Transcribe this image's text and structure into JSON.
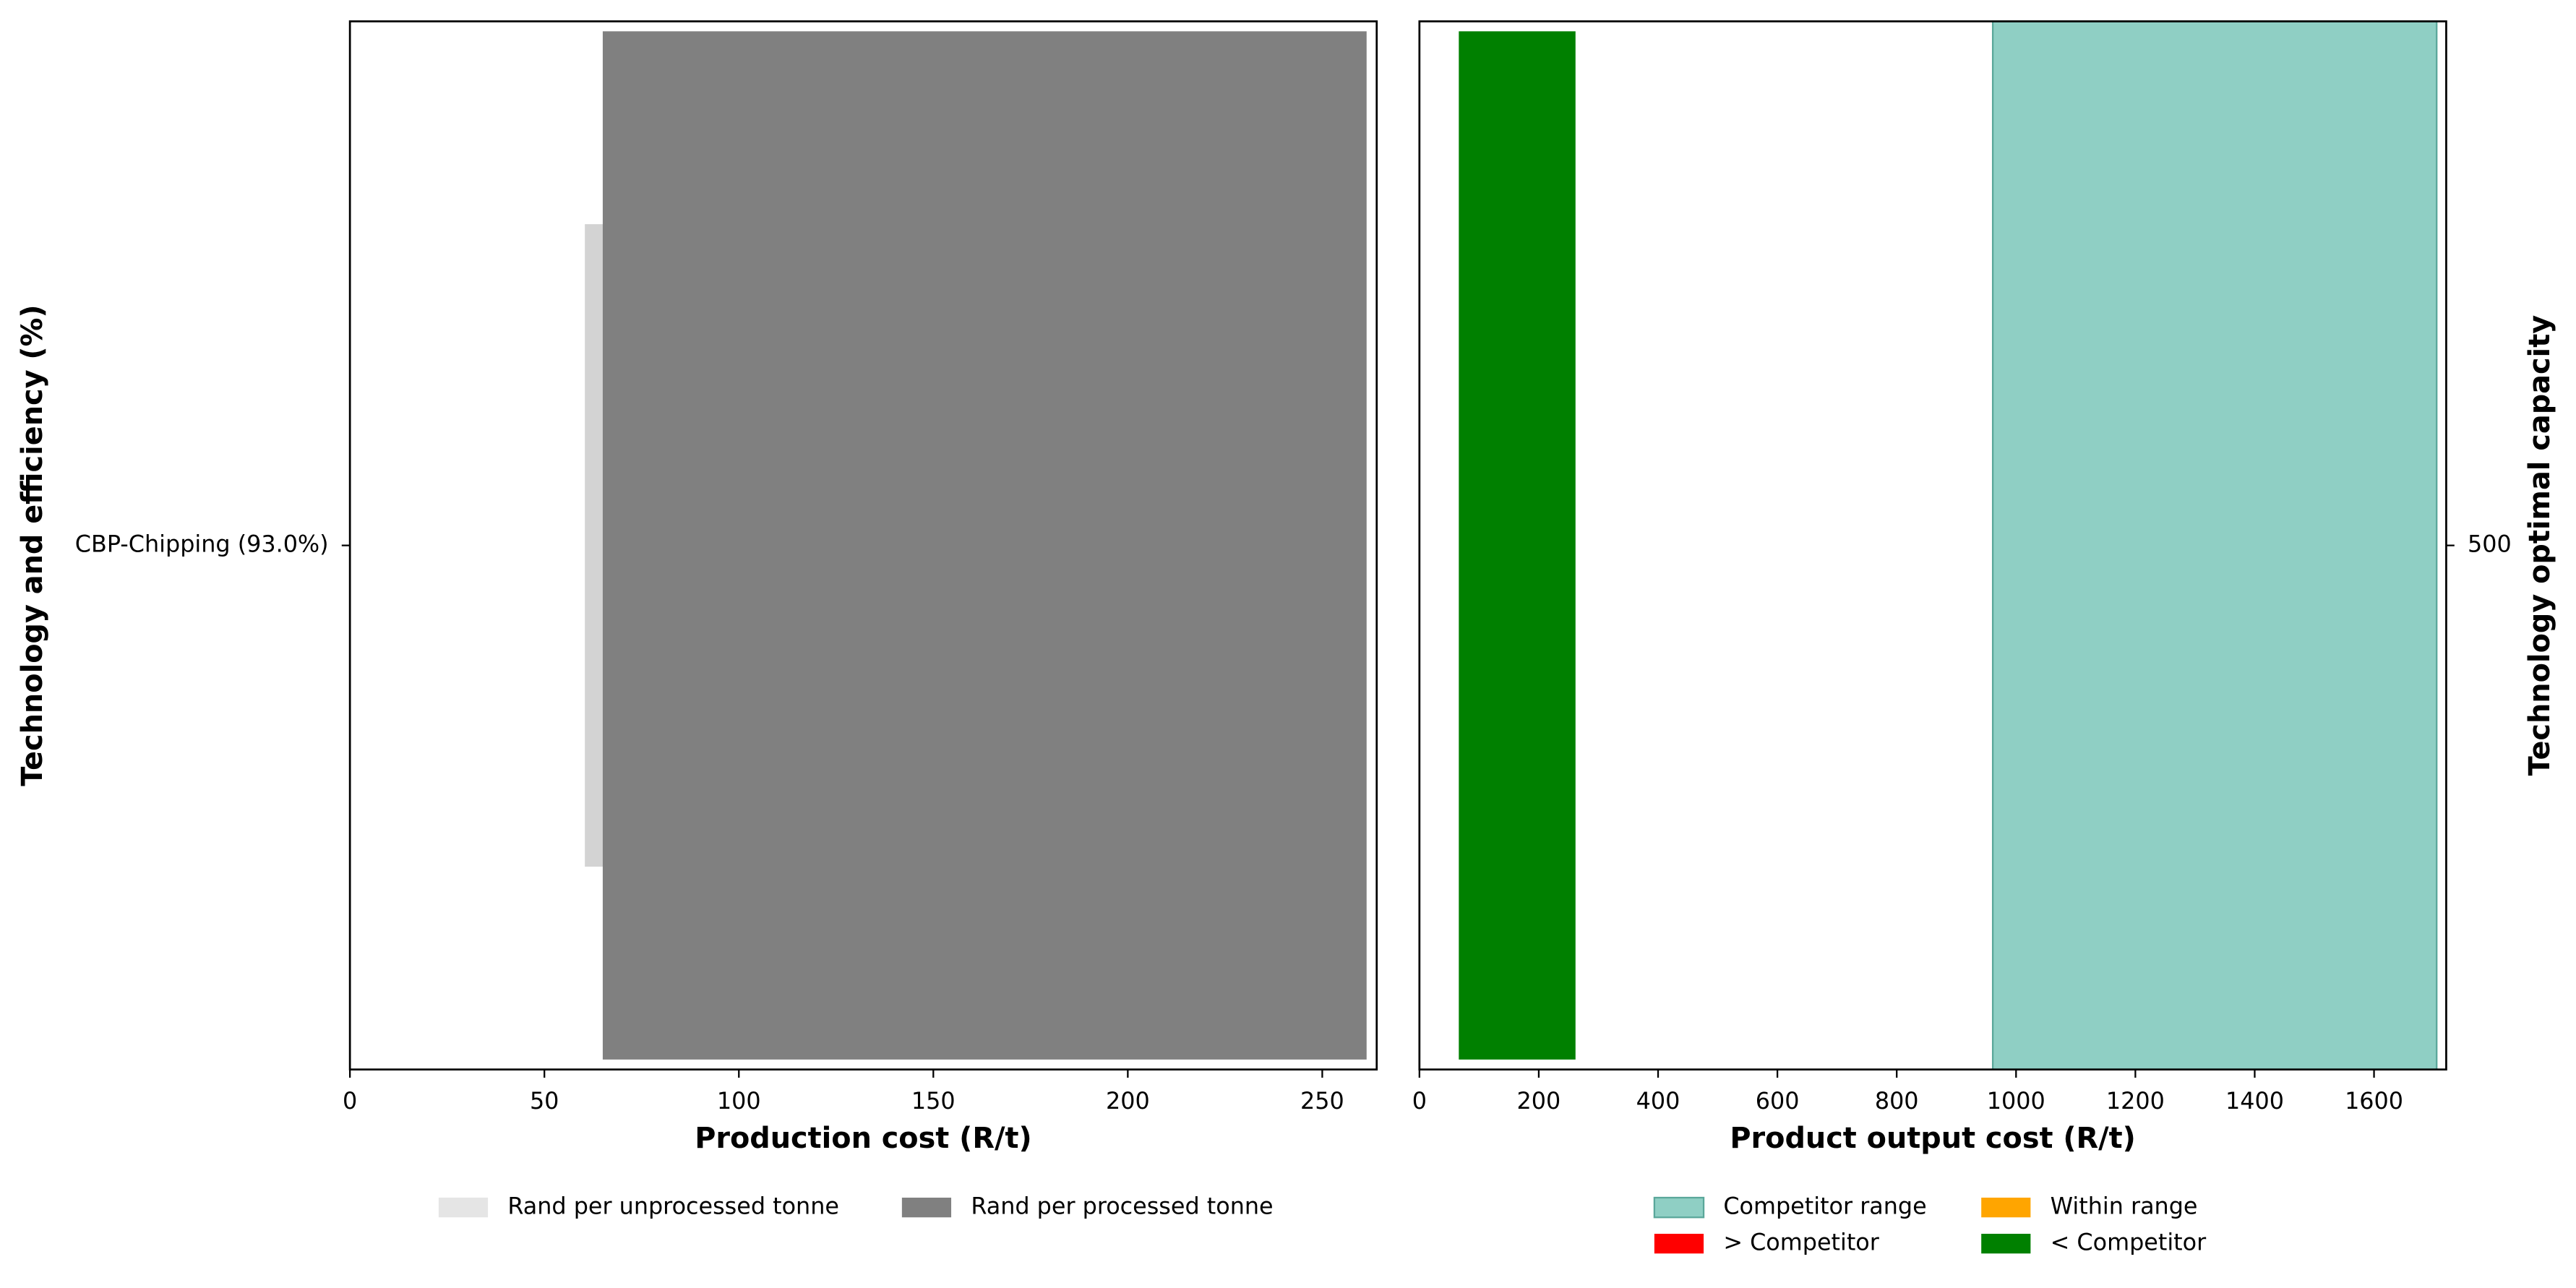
{
  "chart_data": [
    {
      "type": "range-bar",
      "y_label": "Technology and efficiency (%)",
      "x_label": "Production cost (R/t)",
      "categories": [
        "CBP-Chipping (93.0%)"
      ],
      "y_axis_side": "left",
      "xlim": [
        0,
        264
      ],
      "xticks": [
        0,
        50,
        100,
        150,
        200,
        250
      ],
      "series": [
        {
          "name": "Rand per unprocessed tonne",
          "color": "#d3d3d3",
          "values": [
            [
              60.4,
              242.8
            ]
          ]
        },
        {
          "name": "Rand per processed tonne",
          "color": "#808080",
          "values": [
            [
              65.0,
              261.4
            ]
          ]
        }
      ]
    },
    {
      "type": "range-bar",
      "y_label": "Technology optimal capacity",
      "x_label": "Product output cost (R/t)",
      "categories": [
        "500"
      ],
      "y_axis_side": "right",
      "xlim": [
        0,
        1721
      ],
      "xticks": [
        0,
        200,
        400,
        600,
        800,
        1000,
        1200,
        1400,
        1600
      ],
      "series": [
        {
          "name": "Competitor range",
          "color": "#8fcfc4",
          "span": true,
          "values": [
            [
              961,
              1705
            ]
          ]
        },
        {
          "name": "> Competitor",
          "color": "#ff0000",
          "values": [
            null
          ]
        },
        {
          "name": "Within range",
          "color": "#ffa500",
          "values": [
            null
          ]
        },
        {
          "name": "< Competitor",
          "color": "#008000",
          "values": [
            [
              66,
              261.6
            ]
          ]
        }
      ]
    }
  ]
}
